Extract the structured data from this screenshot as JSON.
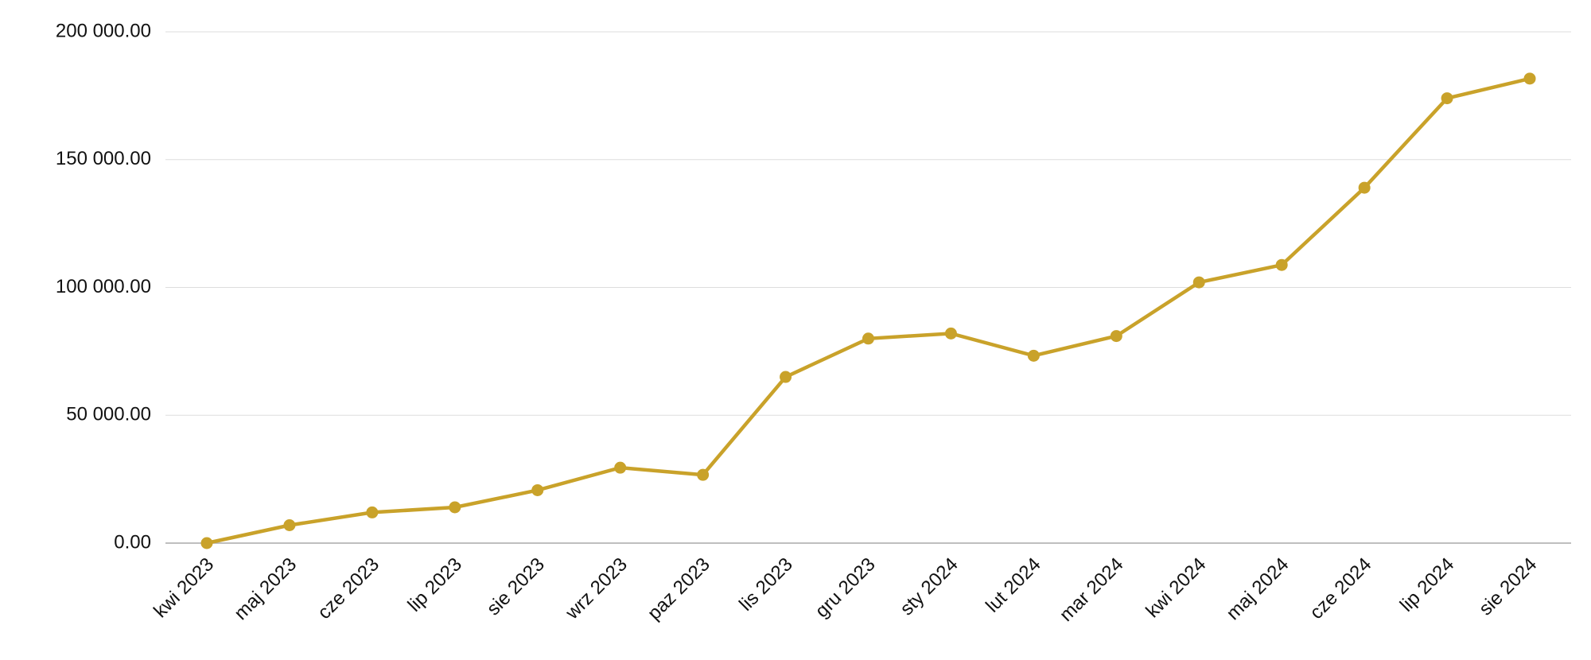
{
  "chart_data": {
    "type": "line",
    "categories": [
      "kwi 2023",
      "maj 2023",
      "cze 2023",
      "lip 2023",
      "sie 2023",
      "wrz 2023",
      "paz 2023",
      "lis 2023",
      "gru 2023",
      "sty 2024",
      "lut 2024",
      "mar 2024",
      "kwi 2024",
      "maj 2024",
      "cze 2024",
      "lip 2024",
      "sie 2024"
    ],
    "values": [
      0,
      7000,
      12000,
      14000,
      20700,
      29500,
      26700,
      65000,
      80000,
      82000,
      73300,
      81000,
      102000,
      108800,
      139000,
      174000,
      181700
    ],
    "color": "#c9a22a",
    "ylim": [
      0,
      200000
    ],
    "yticks": [
      {
        "value": 0,
        "label": "0.00"
      },
      {
        "value": 50000,
        "label": "50 000.00"
      },
      {
        "value": 100000,
        "label": "100 000.00"
      },
      {
        "value": 150000,
        "label": "150 000.00"
      },
      {
        "value": 200000,
        "label": "200 000.00"
      }
    ],
    "grid": true
  }
}
